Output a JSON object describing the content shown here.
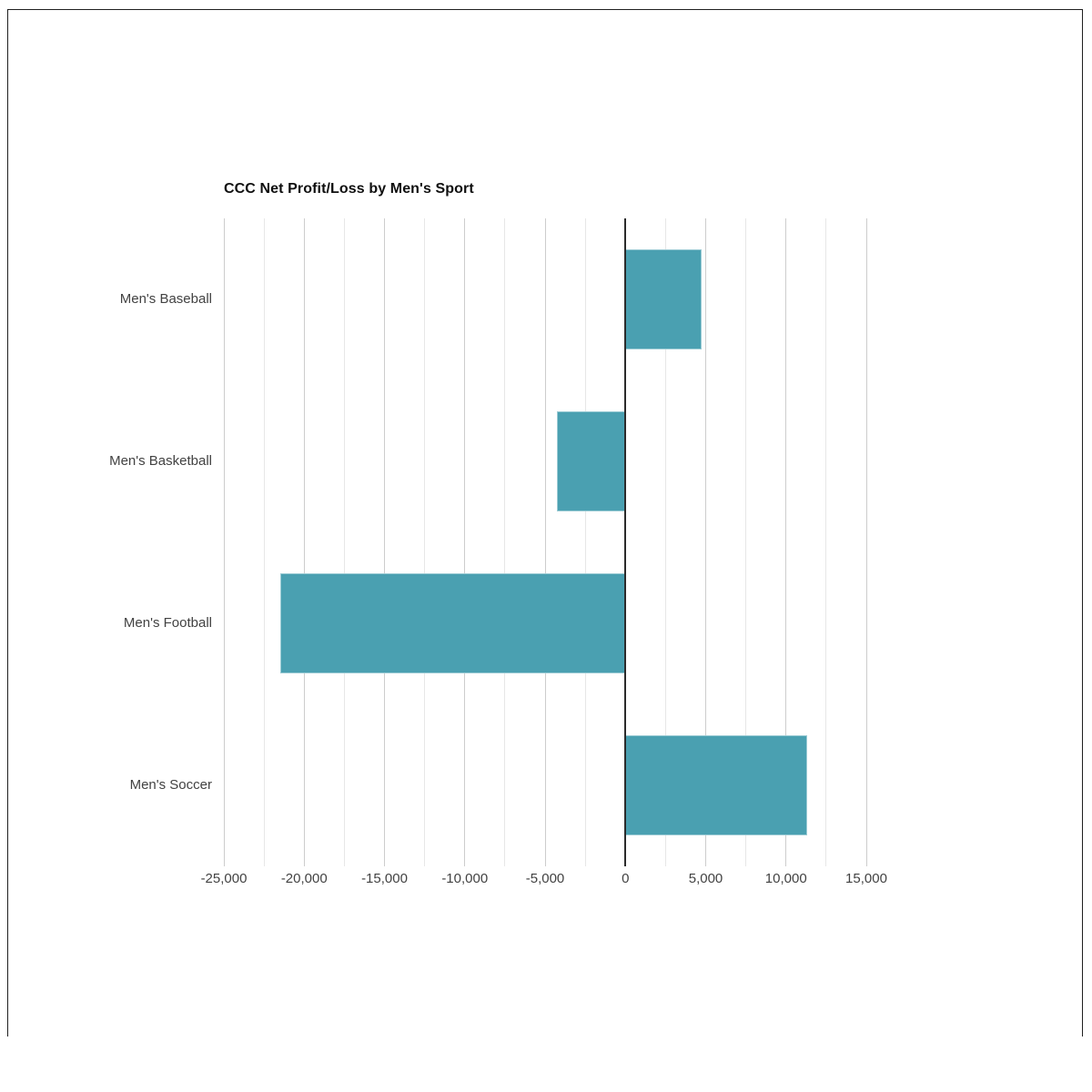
{
  "page": {
    "background": "#ffffff",
    "border_color": "#1f1f1f"
  },
  "chart_data": {
    "type": "bar",
    "orientation": "horizontal",
    "title": "CCC Net Profit/Loss by Men's Sport",
    "categories": [
      "Men's Baseball",
      "Men's Basketball",
      "Men's Football",
      "Men's Soccer"
    ],
    "values": [
      4750,
      -4250,
      -21500,
      11300
    ],
    "xlabel": "",
    "ylabel": "",
    "xlim": [
      -25000,
      15000
    ],
    "x_major_tick_step": 5000,
    "x_minor_gridline_step": 2500,
    "x_tick_labels": [
      "-25,000",
      "-20,000",
      "-15,000",
      "-10,000",
      "-5,000",
      "0",
      "5,000",
      "10,000",
      "15,000"
    ],
    "grid": true,
    "legend_position": "none",
    "bar_color": "#4AA0B1"
  }
}
